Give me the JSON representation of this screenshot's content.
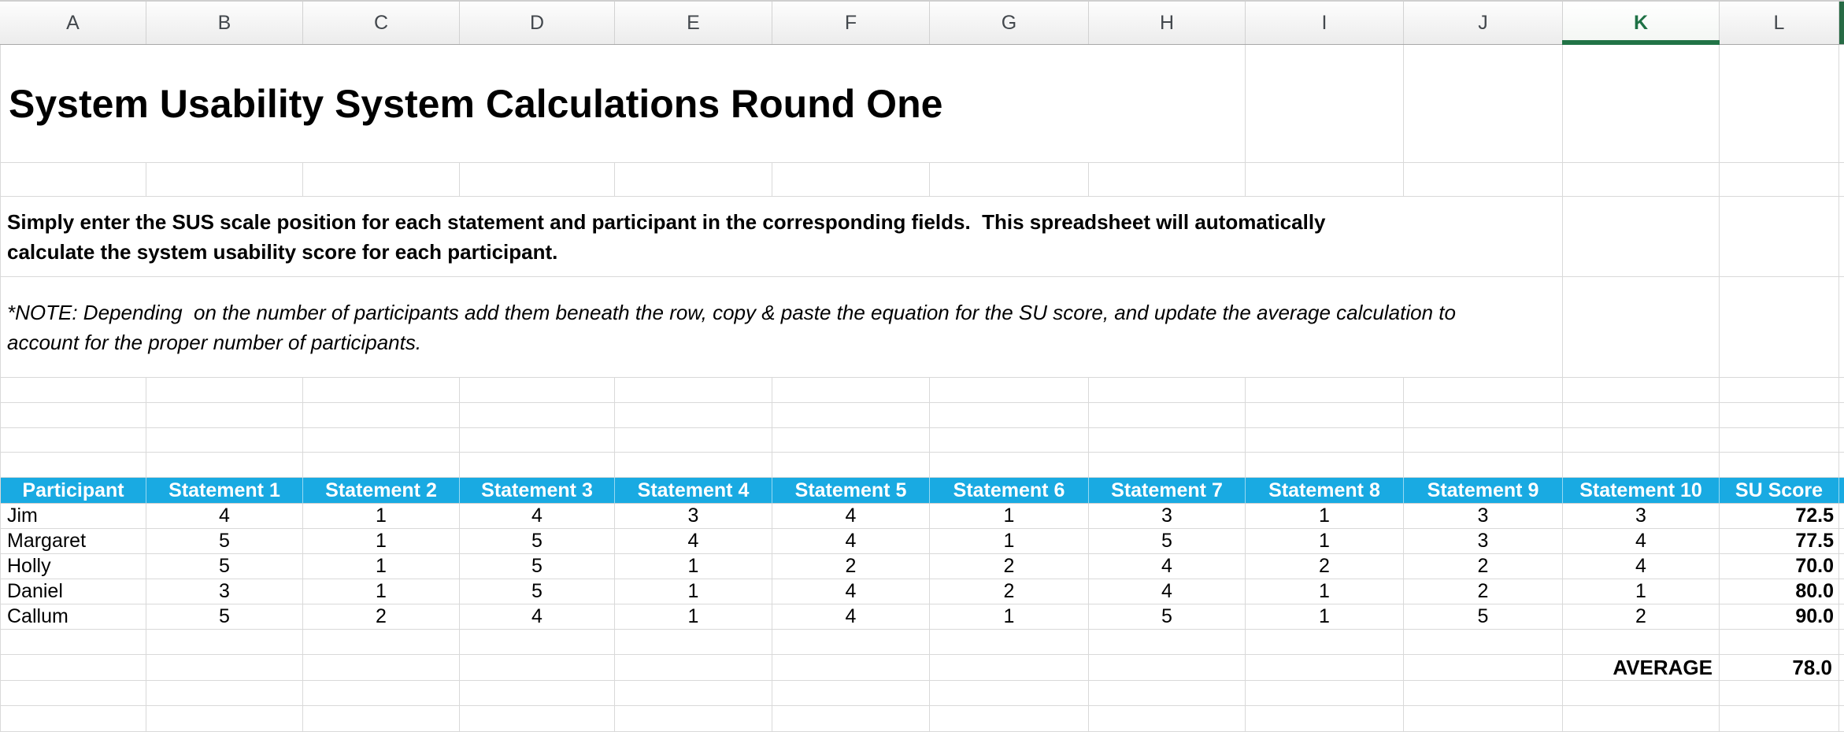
{
  "colors": {
    "table_header_bg": "#19AAE2",
    "table_header_text": "#FFFFFF",
    "selected_column_green": "#217346",
    "gridline": "#D9D9D9"
  },
  "column_headers": {
    "letters": [
      "A",
      "B",
      "C",
      "D",
      "E",
      "F",
      "G",
      "H",
      "I",
      "J",
      "K",
      "L"
    ],
    "selected": "K"
  },
  "document": {
    "title": "System Usability System Calculations Round One",
    "instructions": "Simply enter the SUS scale position for each statement and participant in the corresponding fields.  This spreadsheet will automatically calculate the system usability score for each participant.",
    "note": "*NOTE: Depending  on the number of participants add them beneath the row, copy & paste the equation for the SU score, and update the average calculation to account for the proper number of participants."
  },
  "table": {
    "headers": [
      "Participant",
      "Statement 1",
      "Statement 2",
      "Statement 3",
      "Statement 4",
      "Statement 5",
      "Statement 6",
      "Statement 7",
      "Statement 8",
      "Statement 9",
      "Statement 10",
      "SU Score"
    ],
    "rows": [
      {
        "participant": "Jim",
        "scores": [
          "4",
          "1",
          "4",
          "3",
          "4",
          "1",
          "3",
          "1",
          "3",
          "3"
        ],
        "su_score": "72.5"
      },
      {
        "participant": "Margaret",
        "scores": [
          "5",
          "1",
          "5",
          "4",
          "4",
          "1",
          "5",
          "1",
          "3",
          "4"
        ],
        "su_score": "77.5"
      },
      {
        "participant": "Holly",
        "scores": [
          "5",
          "1",
          "5",
          "1",
          "2",
          "2",
          "4",
          "2",
          "2",
          "4"
        ],
        "su_score": "70.0"
      },
      {
        "participant": "Daniel",
        "scores": [
          "3",
          "1",
          "5",
          "1",
          "4",
          "2",
          "4",
          "1",
          "2",
          "1"
        ],
        "su_score": "80.0"
      },
      {
        "participant": "Callum",
        "scores": [
          "5",
          "2",
          "4",
          "1",
          "4",
          "1",
          "5",
          "1",
          "5",
          "2"
        ],
        "su_score": "90.0"
      }
    ],
    "average_label": "AVERAGE",
    "average_value": "78.0"
  }
}
